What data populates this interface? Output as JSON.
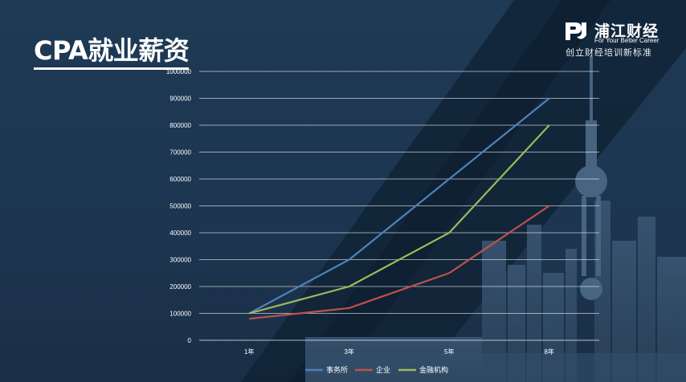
{
  "slide": {
    "title": "CPA就业薪资"
  },
  "logo": {
    "icon": "pj-logo-icon",
    "name": "浦江财经",
    "slogan_en": "For Your Better Career",
    "tagline": "创立财经培训新标准"
  },
  "colors": {
    "background": "#1c3650",
    "text": "#ffffff",
    "gridline": "#ffffff"
  },
  "chart_data": {
    "type": "line",
    "title": "",
    "xlabel": "",
    "ylabel": "",
    "categories": [
      "1年",
      "3年",
      "5年",
      "8年"
    ],
    "ylim": [
      0,
      1000000
    ],
    "yticks": [
      "0",
      "100000",
      "200000",
      "300000",
      "400000",
      "500000",
      "600000",
      "700000",
      "800000",
      "900000",
      "1000000"
    ],
    "grid": true,
    "legend": "bottom",
    "series": [
      {
        "name": "事务所",
        "color": "#4f81bd",
        "values": [
          100000,
          300000,
          600000,
          900000
        ]
      },
      {
        "name": "企业",
        "color": "#c0504d",
        "values": [
          80000,
          120000,
          250000,
          500000
        ]
      },
      {
        "name": "金融机构",
        "color": "#9bbb59",
        "values": [
          100000,
          200000,
          400000,
          800000
        ]
      }
    ]
  }
}
